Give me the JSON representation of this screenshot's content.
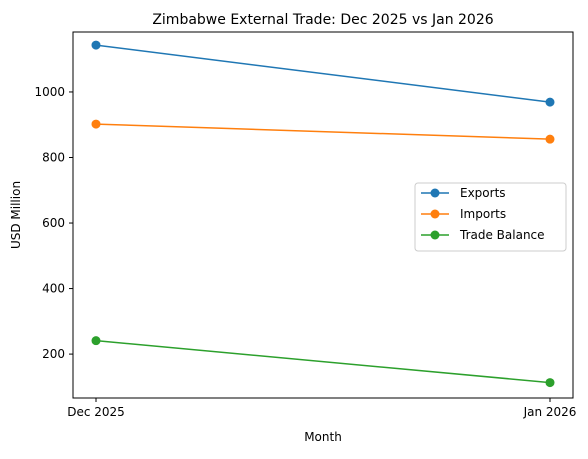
{
  "chart_data": {
    "type": "line",
    "title": "Zimbabwe External Trade: Dec 2025 vs Jan 2026",
    "xlabel": "Month",
    "ylabel": "USD Million",
    "categories": [
      "Dec 2025",
      "Jan 2026"
    ],
    "ylim": [
      66,
      1183
    ],
    "yticks": [
      200,
      400,
      600,
      800,
      1000
    ],
    "grid": false,
    "legend_position": "center-right",
    "series": [
      {
        "name": "Exports",
        "values": [
          1143,
          969
        ],
        "color": "#1f77b4"
      },
      {
        "name": "Imports",
        "values": [
          902,
          856
        ],
        "color": "#ff7f0e"
      },
      {
        "name": "Trade Balance",
        "values": [
          241,
          113
        ],
        "color": "#2ca02c"
      }
    ]
  }
}
